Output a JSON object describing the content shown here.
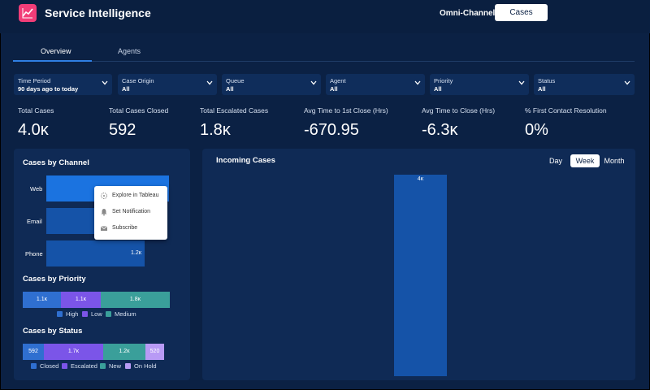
{
  "header": {
    "app_title": "Service Intelligence",
    "omni_channel": "Omni-Channel",
    "cases_button": "Cases",
    "accent": "#f23d78"
  },
  "tabs": [
    {
      "label": "Overview",
      "active": true
    },
    {
      "label": "Agents",
      "active": false
    }
  ],
  "filters": [
    {
      "label": "Time Period",
      "value": "90 days ago to today"
    },
    {
      "label": "Case Origin",
      "value": "All"
    },
    {
      "label": "Queue",
      "value": "All"
    },
    {
      "label": "Agent",
      "value": "All"
    },
    {
      "label": "Priority",
      "value": "All"
    },
    {
      "label": "Status",
      "value": "All"
    }
  ],
  "kpis": [
    {
      "label": "Total Cases",
      "value": "4.0κ"
    },
    {
      "label": "Total Cases Closed",
      "value": "592"
    },
    {
      "label": "Total Escalated Cases",
      "value": "1.8κ"
    },
    {
      "label": "Avg Time to 1st Close (Hrs)",
      "value": "-670.95"
    },
    {
      "label": "Avg Time to Close (Hrs)",
      "value": "-6.3κ"
    },
    {
      "label": "% First Contact Resolution",
      "value": "0%"
    }
  ],
  "by_channel": {
    "title": "Cases by Channel",
    "bars": [
      {
        "label": "Web",
        "value_label": "",
        "fraction": 1.0,
        "color": "#1b73e0"
      },
      {
        "label": "Email",
        "value_label": "",
        "fraction": 0.73,
        "color": "#1553a8"
      },
      {
        "label": "Phone",
        "value_label": "1.2κ",
        "fraction": 0.8,
        "color": "#1553a8"
      }
    ]
  },
  "context_menu": {
    "items": [
      {
        "icon": "explore-icon",
        "label": "Explore in Tableau"
      },
      {
        "icon": "bell-icon",
        "label": "Set Notification"
      },
      {
        "icon": "mail-icon",
        "label": "Subscribe"
      }
    ]
  },
  "by_priority": {
    "title": "Cases by Priority",
    "segments": [
      {
        "name": "High",
        "value_label": "1.1κ",
        "fraction": 0.26,
        "color": "#2f6fd0"
      },
      {
        "name": "Low",
        "value_label": "1.1κ",
        "fraction": 0.27,
        "color": "#7b55e8"
      },
      {
        "name": "Medium",
        "value_label": "1.8κ",
        "fraction": 0.47,
        "color": "#3a9f9a"
      }
    ]
  },
  "by_status": {
    "title": "Cases by Status",
    "segments": [
      {
        "name": "Closed",
        "value_label": "592",
        "fraction": 0.15,
        "color": "#2f6fd0"
      },
      {
        "name": "Escalated",
        "value_label": "1.7κ",
        "fraction": 0.42,
        "color": "#7b55e8"
      },
      {
        "name": "New",
        "value_label": "1.2κ",
        "fraction": 0.3,
        "color": "#3a9f9a"
      },
      {
        "name": "On Hold",
        "value_label": "520",
        "fraction": 0.13,
        "color": "#b89af5"
      }
    ]
  },
  "incoming": {
    "title": "Incoming Cases",
    "toggles": {
      "day": "Day",
      "week": "Week",
      "month": "Month",
      "selected": "Week"
    },
    "bar_value_label": "4κ"
  }
}
